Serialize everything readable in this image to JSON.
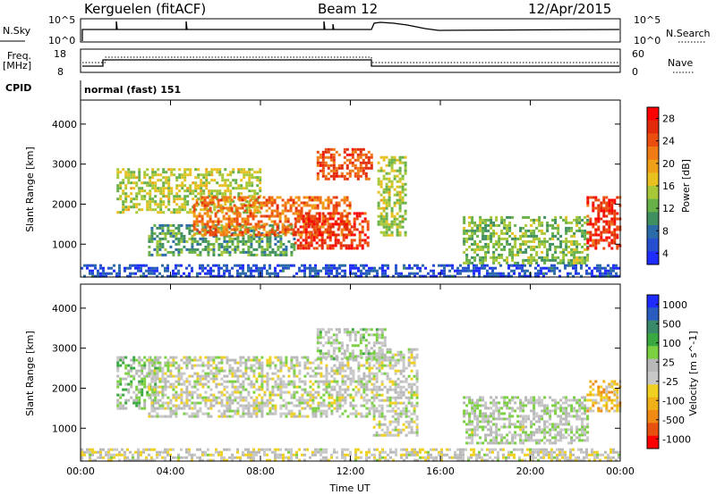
{
  "header": {
    "station": "Kerguelen (fitACF)",
    "beam": "Beam 12",
    "date": "12/Apr/2015"
  },
  "top_panels": {
    "nsky_label": "N.Sky",
    "nsearch_label": "N.Search",
    "nsky_ticks": [
      "10^5",
      "10^0"
    ],
    "nsearch_ticks": [
      "10^5",
      "10^0"
    ],
    "freq_label_1": "Freq.",
    "freq_label_2": "[MHz]",
    "freq_ticks": [
      "18",
      "8"
    ],
    "nave_label": "Nave",
    "nave_ticks": [
      "60",
      "0"
    ],
    "cpid_label": "CPID",
    "cpid_text": "normal (fast) 151"
  },
  "colors": {
    "power": [
      "#1e2cff",
      "#254fcf",
      "#2a6ba8",
      "#3f8f60",
      "#68b048",
      "#a8c838",
      "#e8c020",
      "#f0a018",
      "#f07a14",
      "#ec4e10",
      "#e02a0a",
      "#ff0000"
    ],
    "velocity": [
      "#1e2cff",
      "#2a5cc0",
      "#3a8a6a",
      "#3aa840",
      "#7ad040",
      "#b8b8b8",
      "#c8c8c8",
      "#f0d020",
      "#f0b018",
      "#f08a14",
      "#e85010",
      "#ff0000"
    ],
    "ground": "#b0b0b0"
  },
  "chart_data": [
    {
      "type": "heatmap",
      "title": "Power",
      "xlabel": "",
      "ylabel": "Slant Range [km]",
      "x_ticks": [
        "00:00",
        "04:00",
        "08:00",
        "12:00",
        "16:00",
        "20:00",
        "00:00"
      ],
      "xlim_hours": [
        0,
        24
      ],
      "y_ticks": [
        "1000",
        "2000",
        "3000",
        "4000"
      ],
      "ylim_km": [
        180,
        4600
      ],
      "colorbar": {
        "label": "Power [dB]",
        "ticks": [
          "28",
          "24",
          "20",
          "16",
          "12",
          "8",
          "4"
        ],
        "range": [
          0,
          30
        ]
      },
      "regions": [
        {
          "t": [
            0.0,
            24.0
          ],
          "r": [
            180,
            500
          ],
          "value": 4
        },
        {
          "t": [
            1.6,
            8.0
          ],
          "r": [
            1800,
            2900
          ],
          "value": 14
        },
        {
          "t": [
            3.0,
            9.5
          ],
          "r": [
            700,
            1500
          ],
          "value": 10
        },
        {
          "t": [
            5.0,
            12.0
          ],
          "r": [
            1200,
            2200
          ],
          "value": 22
        },
        {
          "t": [
            9.5,
            12.8
          ],
          "r": [
            900,
            1800
          ],
          "value": 26
        },
        {
          "t": [
            10.5,
            13.0
          ],
          "r": [
            2600,
            3400
          ],
          "value": 24
        },
        {
          "t": [
            13.2,
            14.5
          ],
          "r": [
            1200,
            3200
          ],
          "value": 14
        },
        {
          "t": [
            17.0,
            22.5
          ],
          "r": [
            500,
            1700
          ],
          "value": 12
        },
        {
          "t": [
            22.5,
            24.0
          ],
          "r": [
            900,
            2200
          ],
          "value": 26
        }
      ]
    },
    {
      "type": "heatmap",
      "title": "Velocity",
      "xlabel": "Time UT",
      "ylabel": "Slant Range [km]",
      "x_ticks": [
        "00:00",
        "04:00",
        "08:00",
        "12:00",
        "16:00",
        "20:00",
        "00:00"
      ],
      "xlim_hours": [
        0,
        24
      ],
      "y_ticks": [
        "1000",
        "2000",
        "3000",
        "4000"
      ],
      "ylim_km": [
        180,
        4600
      ],
      "colorbar": {
        "label": "Velocity [m s^-1]",
        "ticks": [
          "1000",
          "500",
          "100",
          "25",
          "-25",
          "-100",
          "-500",
          "-1000"
        ],
        "range": [
          -1000,
          1000
        ]
      },
      "regions": [
        {
          "t": [
            0.0,
            24.0
          ],
          "r": [
            180,
            500
          ],
          "value": -60
        },
        {
          "t": [
            1.6,
            3.5
          ],
          "r": [
            1500,
            2800
          ],
          "value": 200
        },
        {
          "t": [
            3.0,
            13.0
          ],
          "r": [
            1300,
            2800
          ],
          "value": 0
        },
        {
          "t": [
            10.5,
            13.5
          ],
          "r": [
            2700,
            3500
          ],
          "value": 100
        },
        {
          "t": [
            13.0,
            15.0
          ],
          "r": [
            800,
            3000
          ],
          "value": 0
        },
        {
          "t": [
            17.0,
            22.5
          ],
          "r": [
            600,
            1800
          ],
          "value": 80
        },
        {
          "t": [
            22.5,
            24.0
          ],
          "r": [
            1400,
            2200
          ],
          "value": -300
        }
      ]
    }
  ]
}
